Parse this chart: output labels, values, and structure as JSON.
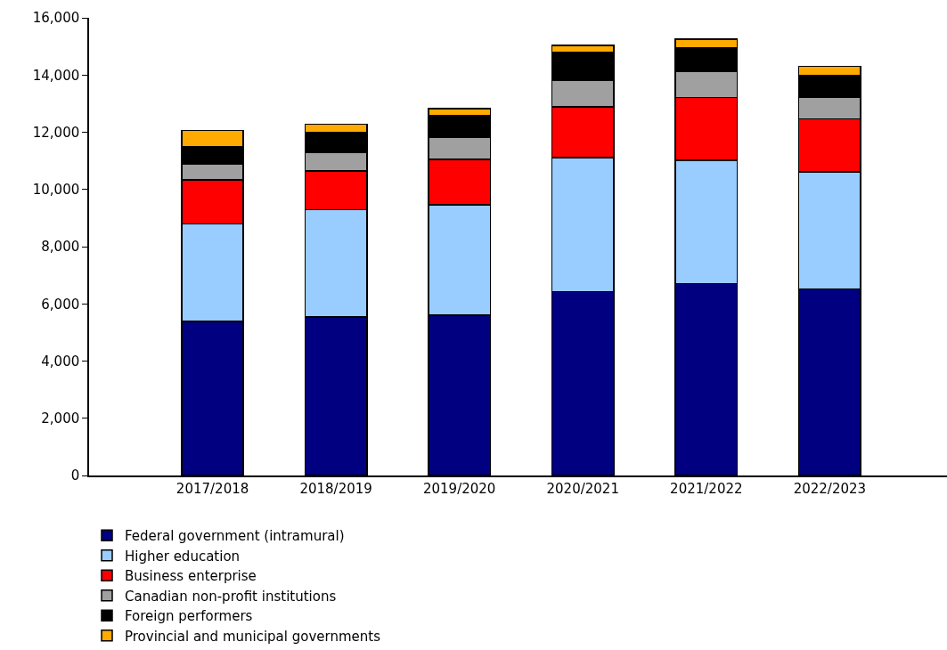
{
  "chart_data": {
    "type": "bar",
    "stacked": true,
    "categories": [
      "2017/2018",
      "2018/2019",
      "2019/2020",
      "2020/2021",
      "2021/2022",
      "2022/2023"
    ],
    "series": [
      {
        "name": "Federal government (intramural)",
        "color": "#000080",
        "values": [
          5380,
          5540,
          5600,
          6430,
          6710,
          6520
        ]
      },
      {
        "name": "Higher education",
        "color": "#99ccff",
        "values": [
          3420,
          3750,
          3860,
          4690,
          4310,
          4100
        ]
      },
      {
        "name": "Business enterprise",
        "color": "#ff0000",
        "values": [
          1540,
          1360,
          1590,
          1770,
          2190,
          1850
        ]
      },
      {
        "name": "Canadian non-profit institutions",
        "color": "#a0a0a0",
        "values": [
          550,
          640,
          770,
          930,
          920,
          750
        ]
      },
      {
        "name": "Foreign performers",
        "color": "#000000",
        "values": [
          590,
          710,
          760,
          970,
          810,
          780
        ]
      },
      {
        "name": "Provincial and municipal governments",
        "color": "#ffaa00",
        "values": [
          580,
          280,
          250,
          250,
          320,
          300
        ]
      }
    ],
    "ylim": [
      0,
      16000
    ],
    "yticks": [
      {
        "value": 0,
        "label": "0"
      },
      {
        "value": 2000,
        "label": "2,000"
      },
      {
        "value": 4000,
        "label": "4,000"
      },
      {
        "value": 6000,
        "label": "6,000"
      },
      {
        "value": 8000,
        "label": "8,000"
      },
      {
        "value": 10000,
        "label": "10,000"
      },
      {
        "value": 12000,
        "label": "12,000"
      },
      {
        "value": 14000,
        "label": "14,000"
      },
      {
        "value": 16000,
        "label": "16,000"
      }
    ],
    "grid": false,
    "legend": "bottom"
  }
}
